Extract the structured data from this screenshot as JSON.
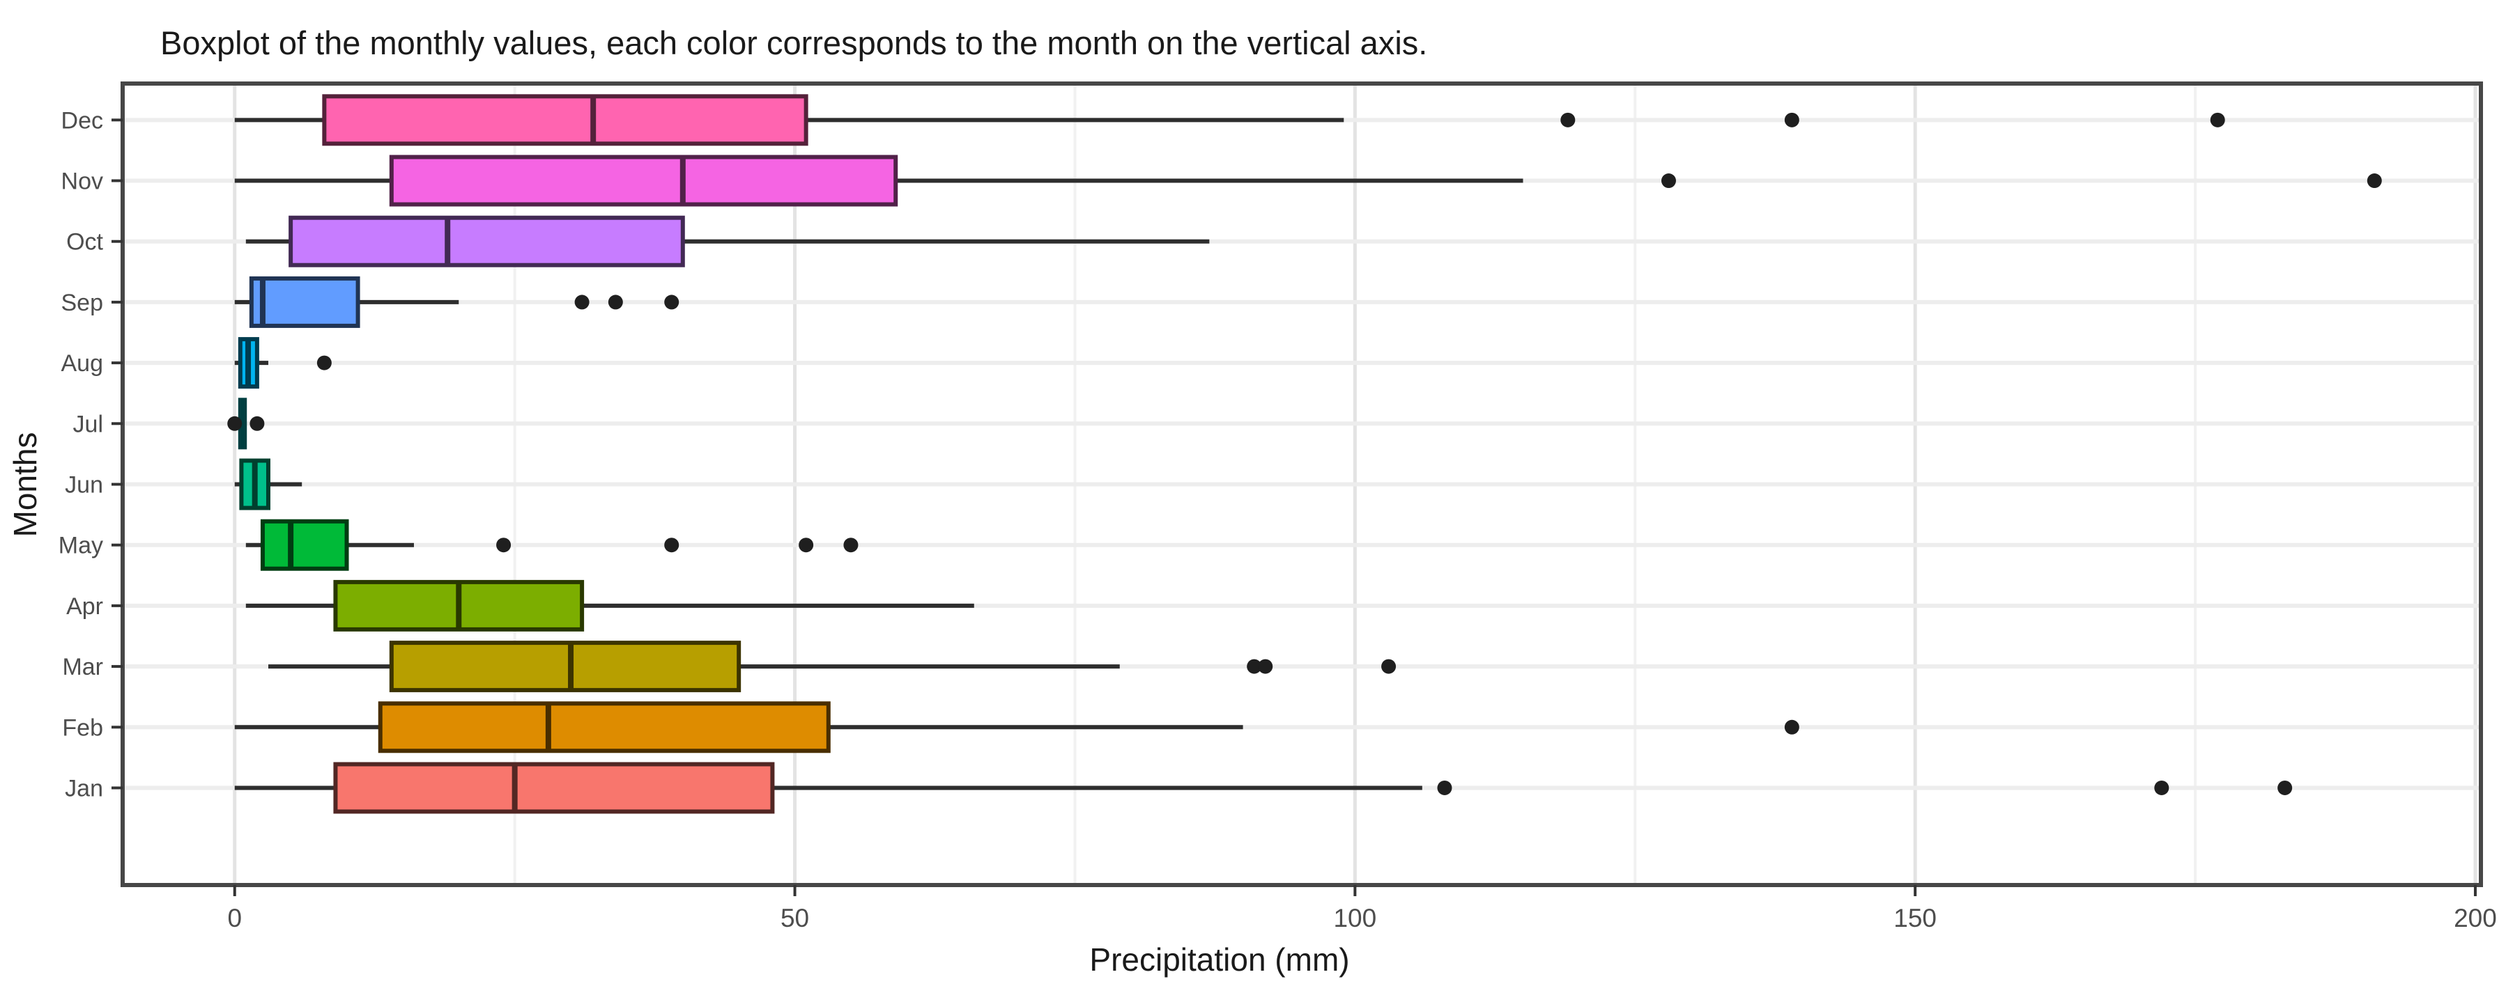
{
  "title": "Boxplot of the monthly values, each color corresponds to the month on the vertical axis.",
  "chart_data": {
    "type": "boxplot",
    "orientation": "horizontal",
    "title": "Boxplot of the monthly values, each color corresponds to the month on the vertical axis.",
    "xlabel": "Precipitation (mm)",
    "ylabel": "Months",
    "x_ticks": [
      0,
      50,
      100,
      150,
      200
    ],
    "x_minor_ticks": [
      25,
      75,
      125,
      175
    ],
    "xlim": [
      -10,
      200.5
    ],
    "grid": "on",
    "categories_top_to_bottom": [
      "Dec",
      "Nov",
      "Oct",
      "Sep",
      "Aug",
      "Jul",
      "Jun",
      "May",
      "Apr",
      "Mar",
      "Feb",
      "Jan"
    ],
    "series": [
      {
        "month": "Dec",
        "fill": "#FF64B0",
        "stroke": "#54213A",
        "min": 0,
        "q1": 8,
        "median": 32,
        "q3": 51,
        "max": 99,
        "outliers": [
          119,
          139,
          177
        ]
      },
      {
        "month": "Nov",
        "fill": "#F564E3",
        "stroke": "#512149",
        "min": 0,
        "q1": 14,
        "median": 40,
        "q3": 59,
        "max": 115,
        "outliers": [
          128,
          191
        ]
      },
      {
        "month": "Oct",
        "fill": "#C77CFF",
        "stroke": "#422954",
        "min": 1,
        "q1": 5,
        "median": 19,
        "q3": 40,
        "max": 87,
        "outliers": []
      },
      {
        "month": "Sep",
        "fill": "#619CFF",
        "stroke": "#203454",
        "min": 0,
        "q1": 1.5,
        "median": 2.5,
        "q3": 11,
        "max": 20,
        "outliers": [
          31,
          34,
          39
        ]
      },
      {
        "month": "Aug",
        "fill": "#00B4F0",
        "stroke": "#003C4F",
        "min": 0,
        "q1": 0.5,
        "median": 1.2,
        "q3": 2,
        "max": 3,
        "outliers": [
          8
        ]
      },
      {
        "month": "Jul",
        "fill": "#00BFC4",
        "stroke": "#003F41",
        "min": 0.4,
        "q1": 0.5,
        "median": 0.7,
        "q3": 0.9,
        "max": 1,
        "outliers": [
          0,
          2
        ]
      },
      {
        "month": "Jun",
        "fill": "#00C08B",
        "stroke": "#003F2E",
        "min": 0,
        "q1": 0.6,
        "median": 1.8,
        "q3": 3,
        "max": 6,
        "outliers": []
      },
      {
        "month": "May",
        "fill": "#00BA38",
        "stroke": "#003D12",
        "min": 1,
        "q1": 2.5,
        "median": 5,
        "q3": 10,
        "max": 16,
        "outliers": [
          24,
          39,
          51,
          55
        ]
      },
      {
        "month": "Apr",
        "fill": "#7CAE00",
        "stroke": "#293900",
        "min": 1,
        "q1": 9,
        "median": 20,
        "q3": 31,
        "max": 66,
        "outliers": []
      },
      {
        "month": "Mar",
        "fill": "#B79F00",
        "stroke": "#3C3400",
        "min": 3,
        "q1": 14,
        "median": 30,
        "q3": 45,
        "max": 79,
        "outliers": [
          91,
          92,
          103
        ]
      },
      {
        "month": "Feb",
        "fill": "#DE8C00",
        "stroke": "#492E00",
        "min": 0,
        "q1": 13,
        "median": 28,
        "q3": 53,
        "max": 90,
        "outliers": [
          139
        ]
      },
      {
        "month": "Jan",
        "fill": "#F8766D",
        "stroke": "#522724",
        "min": 0,
        "q1": 9,
        "median": 25,
        "q3": 48,
        "max": 106,
        "outliers": [
          108,
          172,
          183
        ]
      }
    ],
    "theme": {
      "panel_background": "#ffffff",
      "panel_border": "#474747",
      "grid_major": "#e3e3e3",
      "grid_minor": "#f1f1f1",
      "grid_row": "#ededed",
      "whisker_color": "#2e2e2e",
      "outlier_color": "#1f1f1f",
      "tick_color": "#333333",
      "title_color": "#1a1a1a",
      "tick_label_color": "#4d4d4d"
    }
  }
}
